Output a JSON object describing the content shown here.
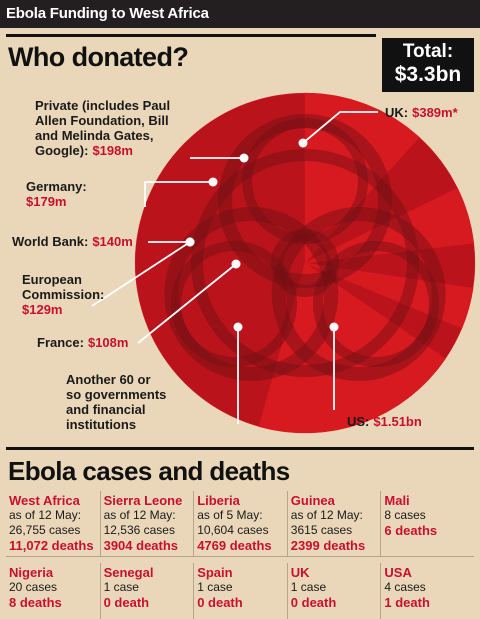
{
  "header": {
    "title": "Ebola Funding to West Africa"
  },
  "donations": {
    "heading": "Who donated?",
    "total_label": "Total:",
    "total_value": "$3.3bn"
  },
  "chart_data": {
    "type": "pie",
    "title": "Who donated?",
    "unit": "$m",
    "slices": [
      {
        "label": "UK:",
        "value_label": "$389m*",
        "value": 389
      },
      {
        "label": "Private (includes Paul Allen Foundation, Bill and Melinda Gates, Google):",
        "value_label": "$198m",
        "value": 198
      },
      {
        "label": "Germany:",
        "value_label": "$179m",
        "value": 179
      },
      {
        "label": "World Bank:",
        "value_label": "$140m",
        "value": 140
      },
      {
        "label": "European Commission:",
        "value_label": "$129m",
        "value": 129
      },
      {
        "label": "France:",
        "value_label": "$108m",
        "value": 108
      },
      {
        "label": "Another 60 or so governments and financial institutions",
        "value_label": "",
        "value": 657
      },
      {
        "label": "US:",
        "value_label": "$1.51bn",
        "value": 1510
      }
    ],
    "colors": {
      "pie": "#d71920",
      "pie_dark": "#a30f18",
      "watermark": "#6e0f14"
    }
  },
  "cases": {
    "heading": "Ebola cases and deaths",
    "items": [
      {
        "name": "West Africa",
        "lines": [
          "as of 12 May:",
          "26,755 cases"
        ],
        "deaths": "11,072 deaths"
      },
      {
        "name": "Sierra Leone",
        "lines": [
          "as of 12 May:",
          "12,536 cases"
        ],
        "deaths": "3904 deaths"
      },
      {
        "name": "Liberia",
        "lines": [
          "as of 5 May:",
          "10,604 cases"
        ],
        "deaths": "4769 deaths"
      },
      {
        "name": "Guinea",
        "lines": [
          "as of 12 May:",
          "3615 cases"
        ],
        "deaths": "2399 deaths"
      },
      {
        "name": "Mali",
        "lines": [
          "8 cases"
        ],
        "deaths": "6 deaths"
      },
      {
        "name": "Nigeria",
        "lines": [
          "20 cases"
        ],
        "deaths": "8 deaths"
      },
      {
        "name": "Senegal",
        "lines": [
          "1 case"
        ],
        "deaths": "0 death"
      },
      {
        "name": "Spain",
        "lines": [
          "1 case"
        ],
        "deaths": "0 death"
      },
      {
        "name": "UK",
        "lines": [
          "1 case"
        ],
        "deaths": "0 death"
      },
      {
        "name": "USA",
        "lines": [
          "4 cases"
        ],
        "deaths": "1 death"
      }
    ]
  }
}
